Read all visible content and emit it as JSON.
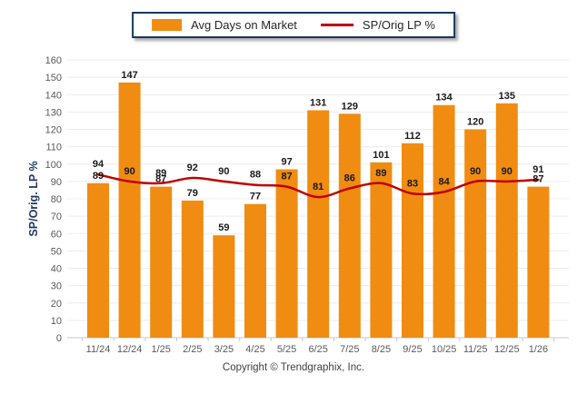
{
  "legend": {
    "bar_label": "Avg Days on Market",
    "line_label": "SP/Orig LP %"
  },
  "footer": {
    "text": "Copyright © Trendgraphix, Inc."
  },
  "chart_data": {
    "type": "combo",
    "categories": [
      "11/24",
      "12/24",
      "1/25",
      "2/25",
      "3/25",
      "4/25",
      "5/25",
      "6/25",
      "7/25",
      "8/25",
      "9/25",
      "10/25",
      "11/25",
      "12/25",
      "1/26"
    ],
    "series": [
      {
        "name": "Avg Days on Market",
        "type": "bar",
        "values": [
          89,
          147,
          87,
          79,
          59,
          77,
          97,
          131,
          129,
          101,
          112,
          134,
          120,
          135,
          87
        ],
        "color": "#F08C11"
      },
      {
        "name": "SP/Orig LP %",
        "type": "line",
        "values": [
          94,
          90,
          89,
          92,
          90,
          88,
          87,
          81,
          86,
          89,
          83,
          84,
          90,
          90,
          91
        ],
        "color": "#C00000"
      }
    ],
    "title": "",
    "xlabel": "",
    "ylabel": "SP/Orig. LP %",
    "ylim": [
      0,
      160
    ],
    "ytick_step": 10,
    "grid": "horizontal",
    "legend_position": "top",
    "data_labels": true,
    "colors": {
      "bar": "#F08C11",
      "line": "#C00000",
      "grid": "#ECECEC",
      "axis": "#C9C9C9",
      "tick_label": "#595959",
      "data_label": "#1A1A1A",
      "axis_title": "#1F3864",
      "legend_border": "#17375E"
    }
  }
}
